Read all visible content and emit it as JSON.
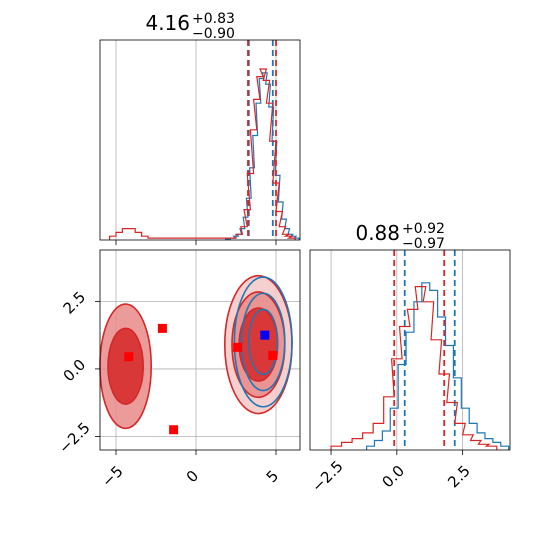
{
  "chart_data": [
    {
      "type": "histogram",
      "panel": "top-left",
      "title": {
        "median": "4.16",
        "plus": "+0.83",
        "minus": "−0.90"
      },
      "xlim": [
        -6,
        6.5
      ],
      "grid": true,
      "x_ticks": [
        -5,
        0,
        5
      ],
      "series": [
        {
          "color": "#1f77b4",
          "bins": [
            [
              2.0,
              0.005
            ],
            [
              2.3,
              0.01
            ],
            [
              2.5,
              0.02
            ],
            [
              2.7,
              0.03
            ],
            [
              2.9,
              0.06
            ],
            [
              3.1,
              0.12
            ],
            [
              3.3,
              0.22
            ],
            [
              3.5,
              0.38
            ],
            [
              3.7,
              0.55
            ],
            [
              3.9,
              0.72
            ],
            [
              4.1,
              0.85
            ],
            [
              4.3,
              0.88
            ],
            [
              4.5,
              0.82
            ],
            [
              4.7,
              0.7
            ],
            [
              4.9,
              0.52
            ],
            [
              5.1,
              0.34
            ],
            [
              5.3,
              0.2
            ],
            [
              5.5,
              0.11
            ],
            [
              5.7,
              0.06
            ],
            [
              5.9,
              0.03
            ],
            [
              6.1,
              0.02
            ],
            [
              6.3,
              0.01
            ]
          ],
          "quantile_lines": [
            3.3,
            4.8
          ]
        },
        {
          "color": "#d62728",
          "bins": [
            [
              -5.2,
              0.02
            ],
            [
              -4.8,
              0.04
            ],
            [
              -4.4,
              0.06
            ],
            [
              -4.0,
              0.06
            ],
            [
              -3.6,
              0.04
            ],
            [
              -3.2,
              0.02
            ],
            [
              -2.8,
              0.01
            ],
            [
              2.3,
              0.01
            ],
            [
              2.7,
              0.03
            ],
            [
              3.0,
              0.07
            ],
            [
              3.2,
              0.16
            ],
            [
              3.4,
              0.35
            ],
            [
              3.6,
              0.58
            ],
            [
              3.8,
              0.74
            ],
            [
              4.0,
              0.86
            ],
            [
              4.2,
              0.9
            ],
            [
              4.4,
              0.84
            ],
            [
              4.6,
              0.72
            ],
            [
              4.8,
              0.52
            ],
            [
              5.0,
              0.3
            ],
            [
              5.2,
              0.15
            ],
            [
              5.4,
              0.07
            ],
            [
              5.6,
              0.03
            ],
            [
              5.8,
              0.02
            ],
            [
              6.0,
              0.01
            ]
          ],
          "quantile_lines": [
            3.25,
            5.0
          ]
        }
      ]
    },
    {
      "type": "contour",
      "panel": "bottom-left",
      "xlim": [
        -6,
        6.5
      ],
      "ylim": [
        -3,
        4.4
      ],
      "grid": true,
      "x_ticks": [
        -5,
        0,
        5
      ],
      "y_ticks": [
        -2.5,
        0.0,
        2.5
      ],
      "x_tick_labels": [
        "−5",
        "0",
        "5"
      ],
      "y_tick_labels": [
        "−2.5",
        "0.0",
        "2.5"
      ],
      "red_contours": [
        {
          "cx": 3.9,
          "cy": 0.9,
          "rx": [
            2.1,
            1.65,
            1.2
          ],
          "ry": [
            2.55,
            1.95,
            1.35
          ]
        },
        {
          "cx": -4.4,
          "cy": 0.1,
          "rx": [
            1.6,
            1.1
          ],
          "ry": [
            2.3,
            1.4
          ]
        }
      ],
      "blue_contours": [
        {
          "cx": 4.2,
          "cy": 1.0,
          "rx": [
            1.8,
            1.35,
            0.9
          ],
          "ry": [
            2.4,
            1.8,
            1.2
          ]
        }
      ],
      "red_markers": [
        [
          -4.2,
          0.45
        ],
        [
          -2.1,
          1.5
        ],
        [
          -1.4,
          -2.25
        ],
        [
          2.6,
          0.8
        ],
        [
          4.8,
          0.5
        ]
      ],
      "blue_markers": [
        [
          4.3,
          1.25
        ]
      ]
    },
    {
      "type": "histogram",
      "panel": "bottom-right",
      "title": {
        "median": "0.88",
        "plus": "+0.92",
        "minus": "−0.97"
      },
      "xlim": [
        -3.3,
        4.3
      ],
      "grid": true,
      "x_ticks": [
        -2.5,
        0.0,
        2.5
      ],
      "x_tick_labels": [
        "−2.5",
        "0.0",
        "2.5"
      ],
      "series": [
        {
          "color": "#1f77b4",
          "bins": [
            [
              -1.0,
              0.02
            ],
            [
              -0.7,
              0.05
            ],
            [
              -0.4,
              0.1
            ],
            [
              -0.1,
              0.22
            ],
            [
              0.2,
              0.45
            ],
            [
              0.5,
              0.62
            ],
            [
              0.8,
              0.78
            ],
            [
              1.1,
              0.88
            ],
            [
              1.4,
              0.84
            ],
            [
              1.7,
              0.7
            ],
            [
              2.0,
              0.55
            ],
            [
              2.3,
              0.38
            ],
            [
              2.6,
              0.22
            ],
            [
              2.9,
              0.14
            ],
            [
              3.2,
              0.09
            ],
            [
              3.5,
              0.06
            ],
            [
              3.8,
              0.04
            ],
            [
              4.1,
              0.02
            ]
          ],
          "quantile_lines": [
            0.3,
            2.2
          ]
        },
        {
          "color": "#d62728",
          "bins": [
            [
              -2.3,
              0.02
            ],
            [
              -1.9,
              0.04
            ],
            [
              -1.5,
              0.06
            ],
            [
              -1.1,
              0.09
            ],
            [
              -0.7,
              0.14
            ],
            [
              -0.3,
              0.28
            ],
            [
              0.0,
              0.48
            ],
            [
              0.3,
              0.65
            ],
            [
              0.6,
              0.74
            ],
            [
              0.9,
              0.86
            ],
            [
              1.2,
              0.78
            ],
            [
              1.5,
              0.58
            ],
            [
              1.8,
              0.4
            ],
            [
              2.1,
              0.25
            ],
            [
              2.4,
              0.14
            ],
            [
              2.7,
              0.08
            ],
            [
              3.0,
              0.05
            ],
            [
              3.3,
              0.03
            ],
            [
              3.6,
              0.02
            ]
          ],
          "quantile_lines": [
            -0.1,
            1.8
          ]
        }
      ]
    }
  ]
}
